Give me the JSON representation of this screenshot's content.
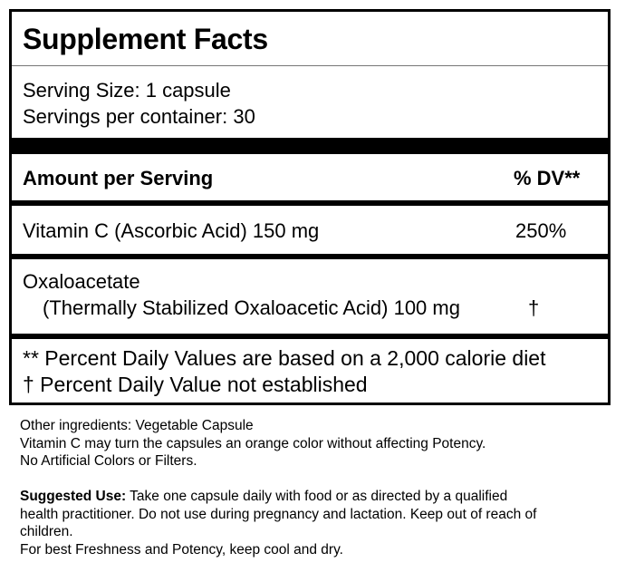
{
  "title": "Supplement Facts",
  "serving_size": "Serving Size: 1 capsule",
  "servings_per_container": "Servings per container: 30",
  "header": {
    "amount_label": "Amount per Serving",
    "dv_label": "% DV**"
  },
  "nutrients": [
    {
      "name": "Vitamin C (Ascorbic Acid) 150 mg",
      "dv": "250%"
    },
    {
      "name": "Oxaloacetate",
      "detail": "(Thermally Stabilized Oxaloacetic Acid) 100 mg",
      "dv": "†"
    }
  ],
  "footnotes": [
    "** Percent Daily Values are based on a 2,000 calorie diet",
    "† Percent Daily Value not established"
  ],
  "other_info": [
    "Other ingredients: Vegetable Capsule",
    "Vitamin C may turn the capsules an orange color without affecting Potency.",
    "No Artificial Colors or Filters."
  ],
  "suggested_use": {
    "label": "Suggested Use:",
    "line1": " Take one capsule daily with food or as directed by a qualified",
    "line2": "health practitioner. Do not use during pregnancy and lactation. Keep out of reach of",
    "line3": "children.",
    "line4": "For best Freshness and Potency, keep cool and dry."
  }
}
